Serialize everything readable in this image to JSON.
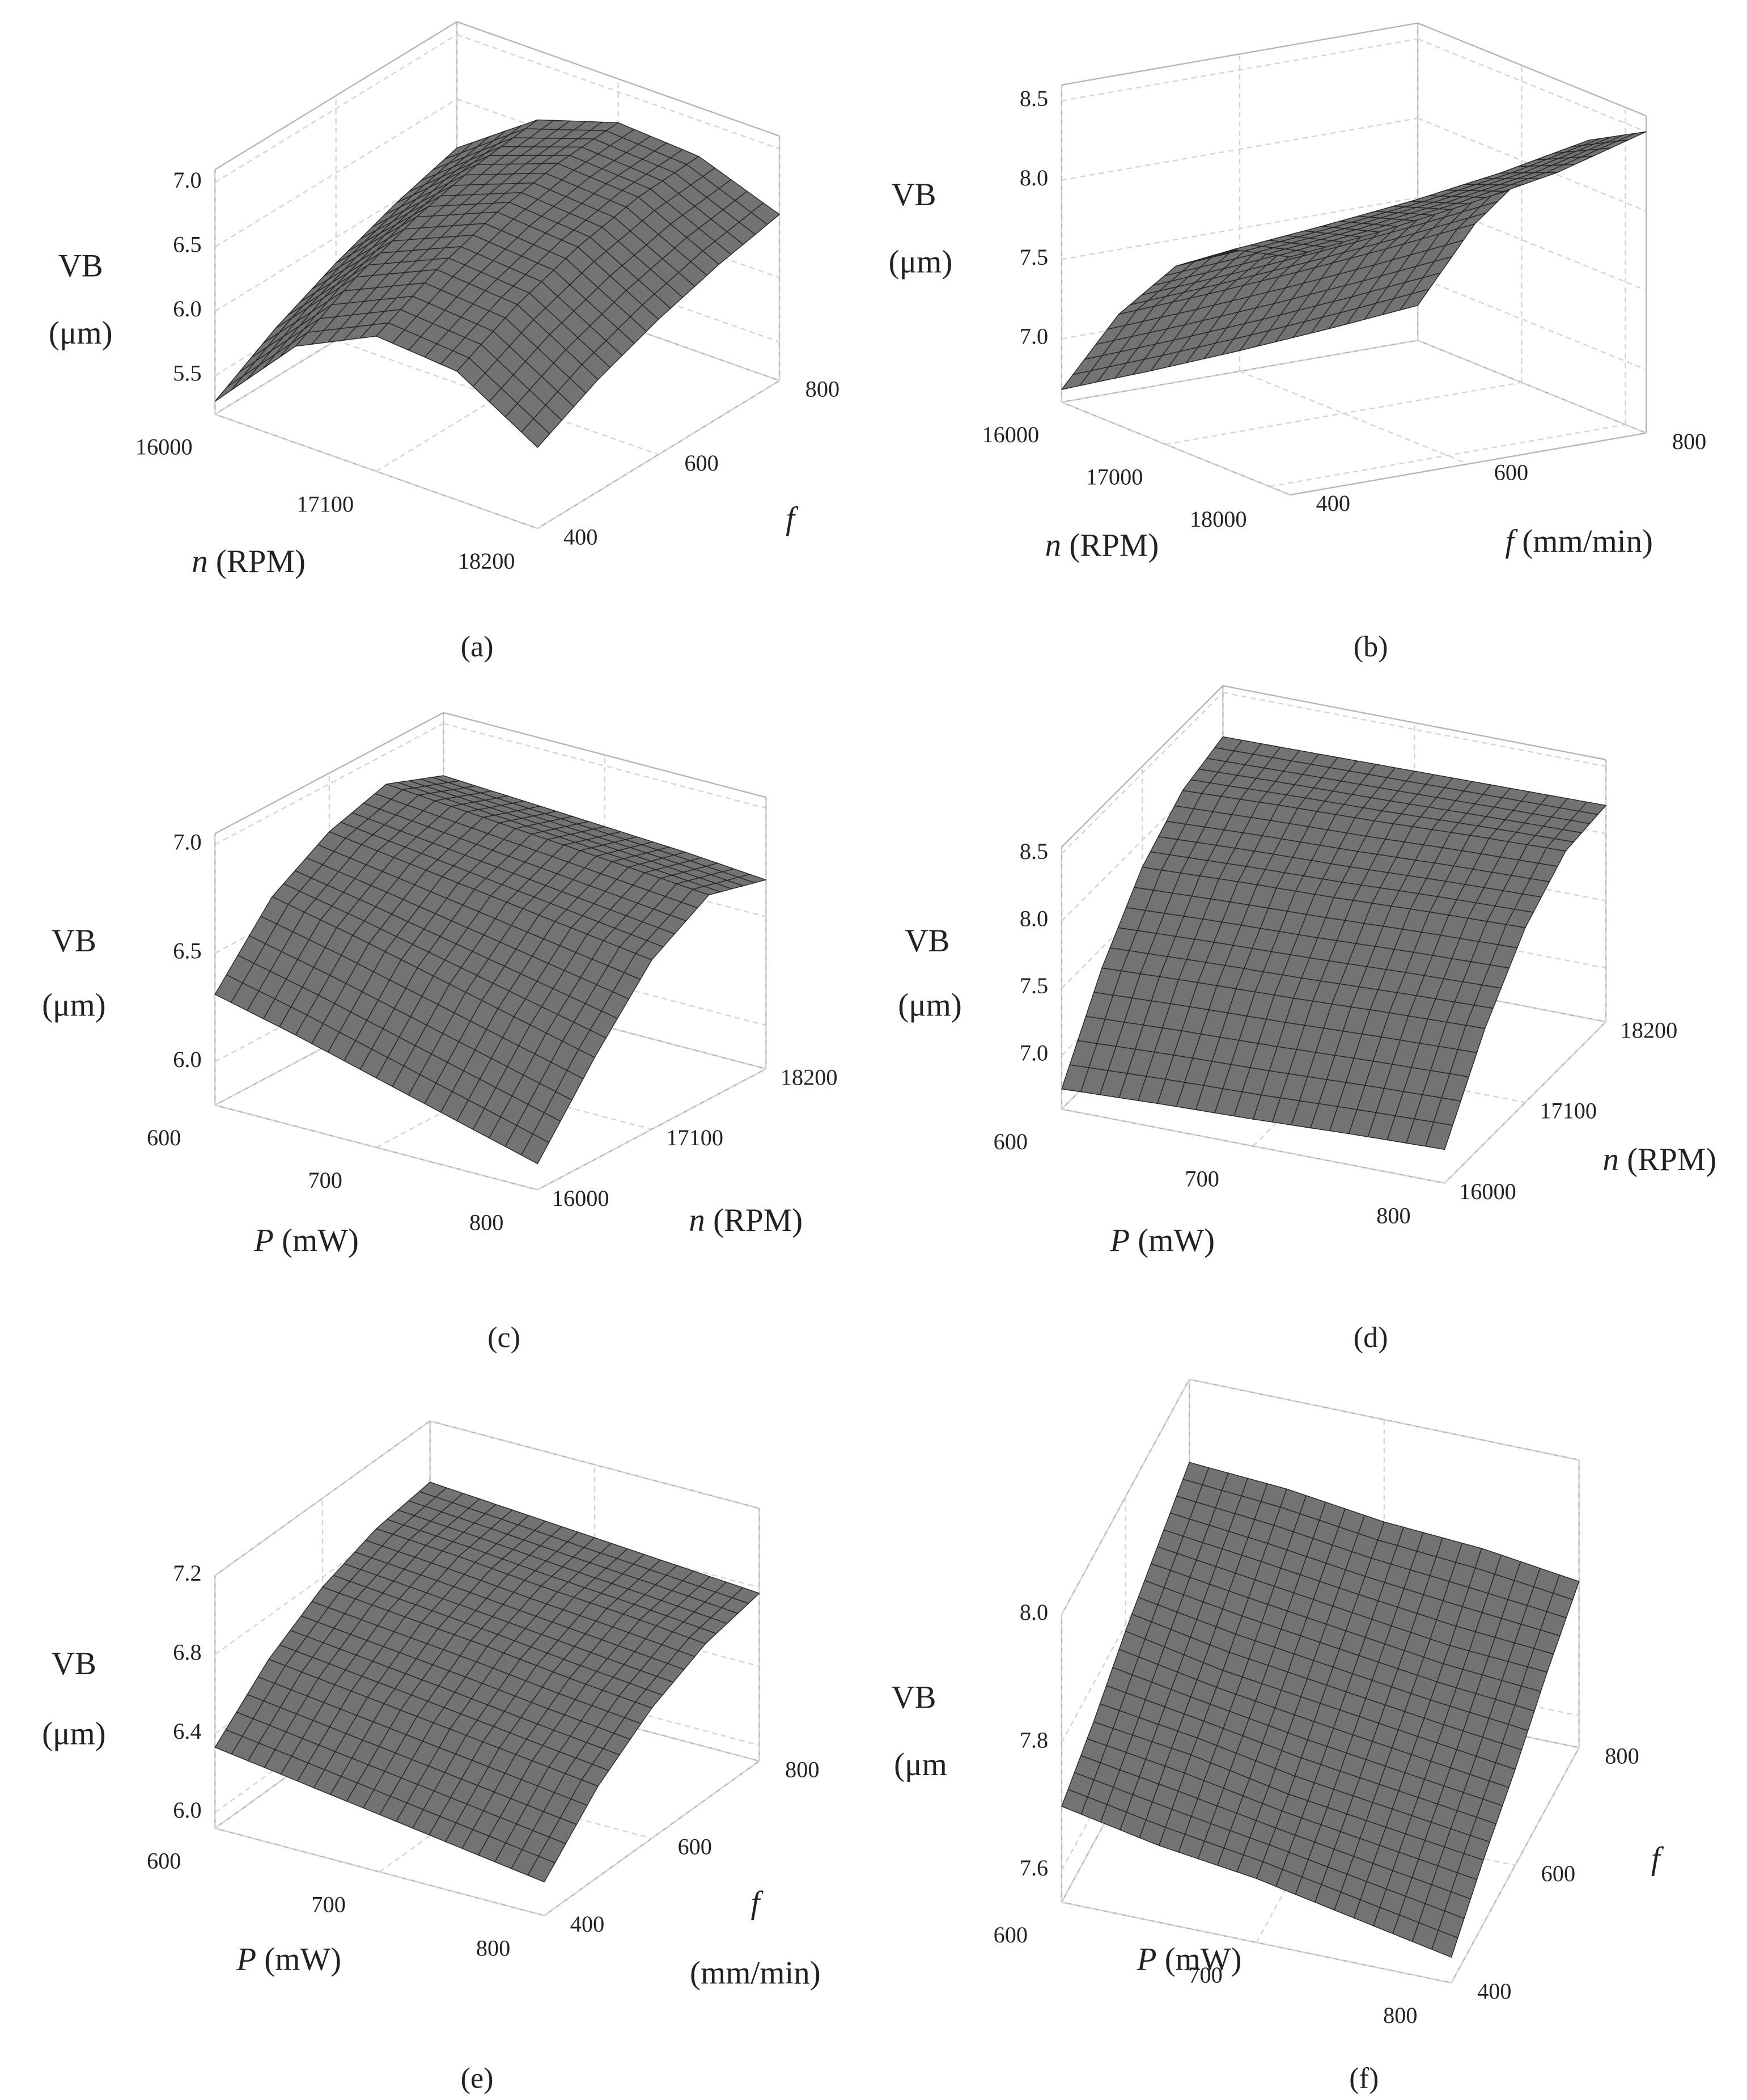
{
  "chart_data": [
    {
      "type": "surface",
      "caption": "(a)",
      "x_label": {
        "symbol": "n",
        "unit": "(RPM)"
      },
      "y_label": {
        "symbol": "f"
      },
      "z_label": [
        "VB",
        "(μm)"
      ],
      "x": [
        16000,
        16550,
        17100,
        17650,
        18200
      ],
      "y": [
        400,
        500,
        600,
        700,
        800
      ],
      "z": [
        [
          5.3,
          5.95,
          6.25,
          6.2,
          5.83
        ],
        [
          5.58,
          6.2,
          6.48,
          6.43,
          6.07
        ],
        [
          5.8,
          6.38,
          6.64,
          6.59,
          6.25
        ],
        [
          5.98,
          6.5,
          6.73,
          6.69,
          6.39
        ],
        [
          6.12,
          6.56,
          6.76,
          6.72,
          6.49
        ]
      ],
      "xlim": [
        16000,
        18200
      ],
      "xticks": [
        16000,
        17100,
        18200
      ],
      "ylim": [
        400,
        800
      ],
      "yticks": [
        400,
        600,
        800
      ],
      "zlim": [
        5.2,
        7.1
      ],
      "zticks": [
        5.5,
        {
          "value": 6,
          "label": "6.0"
        },
        6.5,
        {
          "value": 7,
          "label": "7.0"
        }
      ],
      "color": "#737373",
      "grid": true
    },
    {
      "type": "surface",
      "caption": "(b)",
      "x_label": {
        "symbol": "n",
        "unit": "(RPM)"
      },
      "y_label": {
        "symbol": "f",
        "unit": "(mm/min)"
      },
      "z_label": [
        "VB",
        "(μm)"
      ],
      "x": [
        16000,
        16550,
        17100,
        17650,
        18200
      ],
      "y": [
        400,
        500,
        600,
        700,
        800
      ],
      "z": [
        [
          6.68,
          7.3,
          7.75,
          8.0,
          8.1
        ],
        [
          6.7,
          7.33,
          7.79,
          8.05,
          8.16
        ],
        [
          6.73,
          7.37,
          7.84,
          8.11,
          8.24
        ],
        [
          6.77,
          7.42,
          7.9,
          8.19,
          8.34
        ],
        [
          6.82,
          7.48,
          7.98,
          8.3,
          8.5
        ]
      ],
      "xlim": [
        16000,
        18200
      ],
      "xticks": [
        16000,
        17000,
        18000
      ],
      "ylim": [
        400,
        800
      ],
      "yticks": [
        400,
        600,
        800
      ],
      "zlim": [
        6.6,
        8.6
      ],
      "zticks": [
        {
          "value": 7,
          "label": "7.0"
        },
        7.5,
        {
          "value": 8,
          "label": "8.0"
        },
        8.5
      ],
      "color": "#737373",
      "grid": true
    },
    {
      "type": "surface",
      "caption": "(c)",
      "x_label": {
        "symbol": "P",
        "unit": "(mW)"
      },
      "y_label": {
        "symbol": "n",
        "unit": "(RPM)"
      },
      "z_label": [
        "VB",
        "(μm)"
      ],
      "x": [
        600,
        650,
        700,
        750,
        800
      ],
      "y": [
        16000,
        16550,
        17100,
        17650,
        18200
      ],
      "z": [
        [
          6.31,
          6.22,
          6.12,
          6.02,
          5.92
        ],
        [
          6.62,
          6.54,
          6.45,
          6.36,
          6.27
        ],
        [
          6.78,
          6.73,
          6.68,
          6.63,
          6.58
        ],
        [
          6.86,
          6.83,
          6.8,
          6.77,
          6.74
        ],
        [
          6.76,
          6.74,
          6.72,
          6.7,
          6.67
        ]
      ],
      "xlim": [
        600,
        800
      ],
      "xticks": [
        600,
        700,
        800
      ],
      "ylim": [
        16000,
        18200
      ],
      "yticks": [
        16000,
        17100,
        18200
      ],
      "zlim": [
        5.8,
        7.05
      ],
      "zticks": [
        {
          "value": 6,
          "label": "6.0"
        },
        6.5,
        {
          "value": 7,
          "label": "7.0"
        }
      ],
      "color": "#737373",
      "grid": true
    },
    {
      "type": "surface",
      "caption": "(d)",
      "x_label": {
        "symbol": "P",
        "unit": "(mW)"
      },
      "y_label": {
        "symbol": "n",
        "unit": "(RPM)"
      },
      "z_label": [
        "VB",
        "(μm)"
      ],
      "x": [
        600,
        650,
        700,
        750,
        800
      ],
      "y": [
        16000,
        16550,
        17100,
        17650,
        18200
      ],
      "z": [
        [
          6.75,
          6.78,
          6.8,
          6.83,
          6.85
        ],
        [
          7.35,
          7.38,
          7.4,
          7.43,
          7.45
        ],
        [
          7.8,
          7.83,
          7.85,
          7.88,
          7.9
        ],
        [
          8.07,
          8.1,
          8.12,
          8.15,
          8.17
        ],
        [
          8.17,
          8.18,
          8.19,
          8.2,
          8.21
        ]
      ],
      "xlim": [
        600,
        800
      ],
      "xticks": [
        600,
        700,
        800
      ],
      "ylim": [
        16000,
        18200
      ],
      "yticks": [
        16000,
        17100,
        18200
      ],
      "zlim": [
        6.6,
        8.55
      ],
      "zticks": [
        {
          "value": 7,
          "label": "7.0"
        },
        7.5,
        {
          "value": 8,
          "label": "8.0"
        },
        8.5
      ],
      "color": "#737373",
      "grid": true
    },
    {
      "type": "surface",
      "caption": "(e)",
      "x_label": {
        "symbol": "P",
        "unit": "(mW)"
      },
      "y_label": {
        "symbol": "f",
        "unit": "(mm/min)"
      },
      "z_label": [
        "VB",
        "(μm)"
      ],
      "x": [
        600,
        650,
        700,
        750,
        800
      ],
      "y": [
        400,
        500,
        600,
        700,
        800
      ],
      "z": [
        [
          6.33,
          6.27,
          6.21,
          6.15,
          6.09
        ],
        [
          6.58,
          6.53,
          6.48,
          6.43,
          6.38
        ],
        [
          6.75,
          6.71,
          6.67,
          6.62,
          6.58
        ],
        [
          6.85,
          6.82,
          6.78,
          6.75,
          6.71
        ],
        [
          6.89,
          6.86,
          6.83,
          6.8,
          6.77
        ]
      ],
      "xlim": [
        600,
        800
      ],
      "xticks": [
        600,
        700,
        800
      ],
      "ylim": [
        400,
        800
      ],
      "yticks": [
        400,
        600,
        800
      ],
      "zlim": [
        5.92,
        7.2
      ],
      "zticks": [
        {
          "value": 6,
          "label": "6.0"
        },
        6.4,
        6.8,
        7.2
      ],
      "color": "#737373",
      "grid": true
    },
    {
      "type": "surface",
      "caption": "(f)",
      "x_label": {
        "symbol": "P",
        "unit": "(mW)"
      },
      "y_label": {
        "symbol": "f"
      },
      "z_label": [
        "VB",
        "(μm"
      ],
      "x": [
        600,
        650,
        700,
        750,
        800
      ],
      "y": [
        400,
        500,
        600,
        700,
        800
      ],
      "z": [
        [
          7.7,
          7.67,
          7.65,
          7.62,
          7.59
        ],
        [
          7.74,
          7.72,
          7.69,
          7.67,
          7.65
        ],
        [
          7.79,
          7.76,
          7.74,
          7.72,
          7.7
        ],
        [
          7.83,
          7.81,
          7.79,
          7.77,
          7.76
        ],
        [
          7.87,
          7.86,
          7.84,
          7.83,
          7.81
        ]
      ],
      "xlim": [
        600,
        800
      ],
      "xticks": [
        600,
        700,
        800
      ],
      "ylim": [
        400,
        800
      ],
      "yticks": [
        400,
        600,
        800
      ],
      "zlim": [
        7.55,
        8.0
      ],
      "zticks": [
        7.6,
        7.8,
        {
          "value": 8,
          "label": "8.0"
        }
      ],
      "color": "#737373",
      "grid": true
    }
  ]
}
